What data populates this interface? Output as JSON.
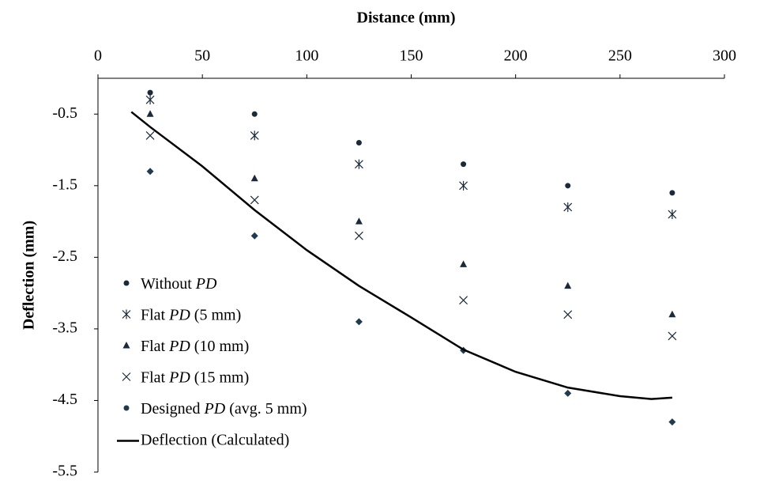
{
  "chart_data": {
    "type": "scatter",
    "title": "Distance (mm)",
    "y_label": "Deflection (mm)",
    "xlim": [
      0,
      300
    ],
    "xticks": [
      0,
      50,
      100,
      150,
      200,
      250,
      300
    ],
    "ylim": [
      -5.5,
      0
    ],
    "yticks": [
      -0.5,
      -1.5,
      -2.5,
      -3.5,
      -4.5,
      -5.5
    ],
    "x_axis_position": "top",
    "series": [
      {
        "name": "Without PD",
        "marker": "circle",
        "color": "#1a2a3a",
        "x": [
          25,
          75,
          125,
          175,
          225,
          275
        ],
        "values": [
          -0.2,
          -0.5,
          -0.9,
          -1.2,
          -1.5,
          -1.6
        ]
      },
      {
        "name": "Flat PD (5 mm)",
        "marker": "asterisk",
        "color": "#1a2a3a",
        "x": [
          25,
          75,
          125,
          175,
          225,
          275
        ],
        "values": [
          -0.3,
          -0.8,
          -1.2,
          -1.5,
          -1.8,
          -1.9
        ]
      },
      {
        "name": "Flat PD (10 mm)",
        "marker": "triangle",
        "color": "#1a2a3a",
        "x": [
          25,
          75,
          125,
          175,
          225,
          275
        ],
        "values": [
          -0.5,
          -1.4,
          -2.0,
          -2.6,
          -2.9,
          -3.3
        ]
      },
      {
        "name": "Flat PD (15 mm)",
        "marker": "x",
        "color": "#1a2a3a",
        "x": [
          25,
          75,
          125,
          175,
          225,
          275
        ],
        "values": [
          -0.8,
          -1.7,
          -2.2,
          -3.1,
          -3.3,
          -3.6
        ]
      },
      {
        "name": "Designed PD (avg. 5 mm)",
        "marker": "diamond",
        "color": "#1f3b4d",
        "x": [
          25,
          75,
          125,
          175,
          225,
          275
        ],
        "values": [
          -1.3,
          -2.2,
          -3.4,
          -3.8,
          -4.4,
          -4.8
        ]
      },
      {
        "name": "Deflection (Calculated)",
        "marker": "line",
        "color": "#000000",
        "x": [
          16,
          25,
          50,
          75,
          100,
          125,
          150,
          175,
          200,
          225,
          250,
          265,
          275
        ],
        "values": [
          -0.47,
          -0.68,
          -1.23,
          -1.84,
          -2.4,
          -2.9,
          -3.34,
          -3.79,
          -4.1,
          -4.32,
          -4.44,
          -4.48,
          -4.46
        ]
      }
    ]
  }
}
